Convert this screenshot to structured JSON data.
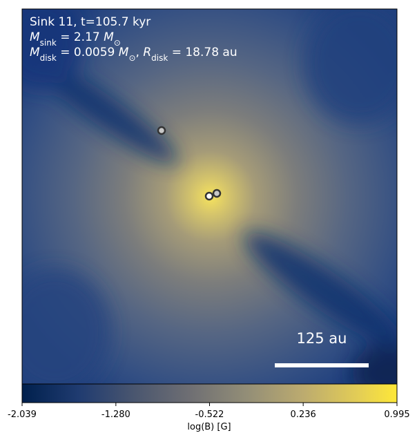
{
  "chart_data": {
    "type": "image",
    "annotations": [
      [
        {
          "text": "Sink 11, t=105.7 kyr"
        }
      ],
      [
        {
          "text": "M",
          "sub": "sink"
        },
        {
          "text": " = 2.17 "
        },
        {
          "text": "M",
          "sub": "⊙"
        }
      ],
      [
        {
          "text": "M",
          "sub": "disk"
        },
        {
          "text": " = 0.0059 "
        },
        {
          "text": "M",
          "sub": "⊙"
        },
        {
          "text": ", "
        },
        {
          "text": "R",
          "sub": "disk"
        },
        {
          "text": " = 18.78 au"
        }
      ]
    ],
    "scale_bar_label": "125 au",
    "colorbar": {
      "label": "log(B) [G]",
      "clim": [
        -2.039,
        0.995
      ],
      "ticks": [
        -2.039,
        {
          "value": -1.28,
          "label": "-1.280"
        },
        -0.522,
        0.236,
        0.995
      ]
    }
  }
}
